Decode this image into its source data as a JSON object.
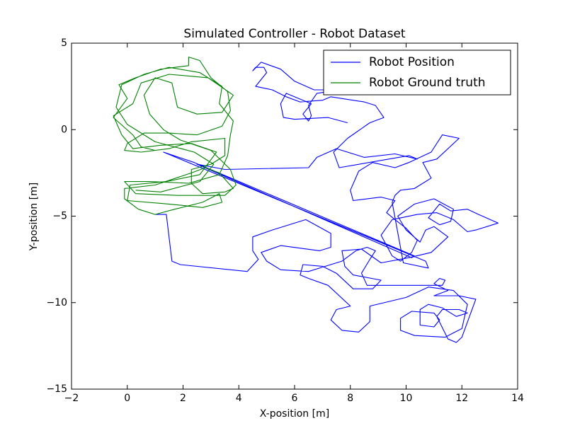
{
  "chart_data": {
    "type": "line",
    "title": "Simulated Controller - Robot Dataset",
    "x_label": "X-position [m]",
    "y_label": "Y-position [m]",
    "xlim": [
      -2,
      14
    ],
    "ylim": [
      -15,
      5
    ],
    "xticks": [
      {
        "value": -2,
        "label": "−2"
      },
      0,
      2,
      4,
      6,
      8,
      10,
      12,
      14
    ],
    "yticks": [
      {
        "value": -15,
        "label": "−15"
      },
      {
        "value": -10,
        "label": "−10"
      },
      {
        "value": -5,
        "label": "−5"
      },
      0,
      5
    ],
    "legend": "upper right",
    "series": [
      {
        "name": "Robot Position",
        "color": "#0000ff",
        "x": [
          1.0,
          1.4,
          1.6,
          1.9,
          4.3,
          4.7,
          4.5,
          4.5,
          5.2,
          6.4,
          7.3,
          7.3,
          6.9,
          5.5,
          4.8,
          5.0,
          5.5,
          6.5,
          7.7,
          8.2,
          8.6,
          8.9,
          8.7,
          8.4,
          8.6,
          9.2,
          10.5,
          11.3,
          11.4,
          11.2,
          11.0,
          11.5,
          11.0,
          11.9,
          12.5,
          12.0,
          11.8,
          11.5,
          11.1,
          11.3,
          11.9,
          12.2,
          11.8,
          11.3,
          10.8,
          10.5,
          10.5,
          11.0,
          11.2,
          11.0,
          10.2,
          9.8,
          9.8,
          10.3,
          11.4,
          12.0,
          12.2,
          11.7,
          10.8,
          10.0,
          8.7,
          8.7,
          8.3,
          7.7,
          7.3,
          7.5,
          8.0,
          7.2,
          6.5,
          6.2,
          6.3,
          7.0,
          7.5,
          8.1,
          8.8,
          9.1,
          8.1,
          7.8,
          7.7,
          8.4,
          9.1,
          10.1,
          10.9,
          11.5,
          11.0,
          10.7,
          10.5,
          10.0,
          9.7,
          10.3,
          11.0,
          11.7,
          11.6,
          11.2,
          10.8,
          11.2,
          11.6,
          12.2,
          12.6,
          13.3,
          12.5,
          12.2,
          11.7,
          11.1,
          10.4,
          9.5,
          9.1,
          9.5,
          9.8,
          10.2,
          10.4,
          10.0,
          9.6,
          9.3,
          9.6,
          9.1,
          8.1,
          8.0,
          8.3,
          8.8,
          9.6,
          10.1,
          10.9,
          11.3,
          11.9,
          11.1,
          10.6,
          10.9,
          10.3,
          9.8,
          9.6,
          9.5,
          9.9,
          10.8,
          10.7,
          1.3,
          2.4,
          10.3,
          10.2,
          2.5,
          3.5,
          6.5,
          6.8,
          7.5,
          8.5,
          9.6,
          10.4,
          10.1,
          7.6,
          7.4,
          7.9,
          8.7,
          9.2,
          8.9,
          8.5,
          7.3,
          7.0,
          6.2,
          5.7,
          5.2,
          4.6,
          5.0,
          4.9,
          4.6,
          4.5,
          4.8,
          5.5,
          6.0,
          6.7,
          7.6,
          6.8,
          6.5,
          6.6,
          6.5,
          6.3,
          6.6,
          6.3,
          5.7,
          5.5,
          5.6,
          6.0,
          7.2,
          7.9
        ],
        "y": [
          -4.9,
          -4.9,
          -7.6,
          -7.8,
          -8.2,
          -7.5,
          -7.0,
          -6.2,
          -5.8,
          -5.2,
          -6.0,
          -6.8,
          -7.0,
          -6.7,
          -7.1,
          -7.6,
          -8.1,
          -8.2,
          -7.6,
          -7.0,
          -6.8,
          -7.0,
          -7.5,
          -8.3,
          -9.0,
          -9.0,
          -9.0,
          -9.0,
          -8.7,
          -8.6,
          -8.9,
          -9.3,
          -9.6,
          -9.6,
          -9.8,
          -12.0,
          -12.3,
          -12.1,
          -10.8,
          -10.4,
          -10.4,
          -10.6,
          -10.8,
          -10.3,
          -10.1,
          -10.4,
          -11.3,
          -11.4,
          -11.0,
          -10.6,
          -10.5,
          -10.9,
          -11.6,
          -11.9,
          -12.0,
          -11.5,
          -10.1,
          -9.3,
          -9.1,
          -9.7,
          -10.2,
          -11.1,
          -11.7,
          -11.6,
          -11.0,
          -10.4,
          -10.2,
          -9.0,
          -8.6,
          -8.4,
          -7.8,
          -7.9,
          -8.3,
          -9.2,
          -9.2,
          -8.7,
          -8.4,
          -7.9,
          -7.0,
          -6.9,
          -7.7,
          -7.4,
          -7.1,
          -6.2,
          -5.6,
          -5.8,
          -6.5,
          -5.8,
          -5.0,
          -4.3,
          -4.0,
          -4.6,
          -5.3,
          -5.5,
          -5.1,
          -4.3,
          -4.7,
          -4.6,
          -4.9,
          -5.4,
          -5.8,
          -5.9,
          -5.2,
          -4.8,
          -4.9,
          -5.2,
          -6.1,
          -7.3,
          -7.6,
          -7.1,
          -6.4,
          -5.7,
          -5.2,
          -4.8,
          -4.1,
          -3.9,
          -4.1,
          -3.5,
          -2.4,
          -1.9,
          -2.2,
          -1.9,
          -1.3,
          -0.3,
          -0.5,
          -1.7,
          -1.9,
          -2.8,
          -3.4,
          -3.5,
          -3.8,
          -4.2,
          -7.7,
          -8.0,
          -7.6,
          -1.3,
          -1.9,
          -7.3,
          -7.4,
          -2.0,
          -2.3,
          -2.2,
          -1.6,
          -1.1,
          -1.6,
          -1.4,
          -1.7,
          -1.5,
          -2.2,
          -1.3,
          -0.5,
          0.4,
          0.7,
          1.4,
          1.6,
          1.9,
          1.7,
          1.6,
          1.9,
          2.3,
          2.5,
          3.3,
          3.6,
          3.6,
          3.4,
          3.9,
          3.5,
          2.8,
          2.3,
          2.3,
          2.1,
          1.4,
          0.8,
          0.5,
          0.9,
          1.5,
          1.7,
          2.1,
          1.5,
          0.7,
          0.6,
          0.7,
          0.4
        ]
      },
      {
        "name": "Robot Ground truth",
        "color": "#008000",
        "x": [
          1.0,
          0.5,
          0.2,
          -0.5,
          0.0,
          -0.3,
          0.3,
          1.2,
          2.2,
          2.2,
          2.6,
          3.0,
          3.6,
          3.7,
          3.4,
          2.5,
          1.5,
          0.6,
          0.0,
          -0.1,
          0.5,
          1.5,
          2.3,
          3.5,
          3.5,
          3.0,
          2.3,
          2.3,
          2.7,
          3.5,
          3.8,
          3.3,
          2.8,
          2.3,
          1.0,
          -0.1,
          -0.1,
          0.4,
          1.0,
          1.7,
          2.7,
          3.3,
          3.4,
          2.7,
          1.5,
          0.0,
          0.1,
          1.4,
          2.6,
          3.2,
          2.3,
          1.2,
          0.2,
          -0.2,
          -0.5,
          0.2,
          0.5,
          1.5,
          2.9,
          3.8,
          3.4,
          2.5,
          1.8,
          1.6,
          1.0,
          0.6,
          0.8,
          1.3,
          1.9,
          3.0,
          3.7,
          3.9,
          3.5,
          1.8,
          0.3,
          -0.1,
          0.8,
          2.2,
          3.3,
          3.6,
          3.7,
          3.8,
          3.3,
          3.4,
          2.6,
          1.5,
          0.6,
          -0.2,
          -0.4,
          0.0,
          1.0,
          2.4,
          3.1,
          2.6,
          1.2,
          0.3
        ],
        "y": [
          -1.2,
          -1.0,
          -0.3,
          0.7,
          1.8,
          2.6,
          3.0,
          3.5,
          3.7,
          4.2,
          4.0,
          3.0,
          2.2,
          1.1,
          0.2,
          -0.3,
          -0.2,
          -0.2,
          -0.8,
          -1.2,
          -1.3,
          -1.1,
          -0.7,
          -0.5,
          -1.5,
          -2.0,
          -2.3,
          -3.1,
          -3.7,
          -3.6,
          -3.4,
          -2.5,
          -2.2,
          -2.5,
          -3.2,
          -3.4,
          -4.0,
          -4.6,
          -4.9,
          -4.6,
          -4.2,
          -3.7,
          -4.2,
          -4.5,
          -4.3,
          -4.1,
          -3.2,
          -3.0,
          -2.6,
          -1.3,
          -0.8,
          -0.9,
          -1.1,
          -0.3,
          0.8,
          1.5,
          2.7,
          3.2,
          3.0,
          2.0,
          1.0,
          0.9,
          1.3,
          2.7,
          3.0,
          2.0,
          0.9,
          0.0,
          -0.6,
          -1.2,
          -2.3,
          -3.2,
          -3.8,
          -3.8,
          -3.7,
          -3.0,
          -3.0,
          -3.1,
          -2.6,
          -1.5,
          -0.3,
          0.5,
          1.5,
          2.5,
          3.3,
          3.6,
          3.2,
          2.6,
          1.3,
          0.3,
          -0.7,
          -1.3,
          -2.0,
          -3.0,
          -3.6,
          -3.5
        ]
      }
    ]
  }
}
